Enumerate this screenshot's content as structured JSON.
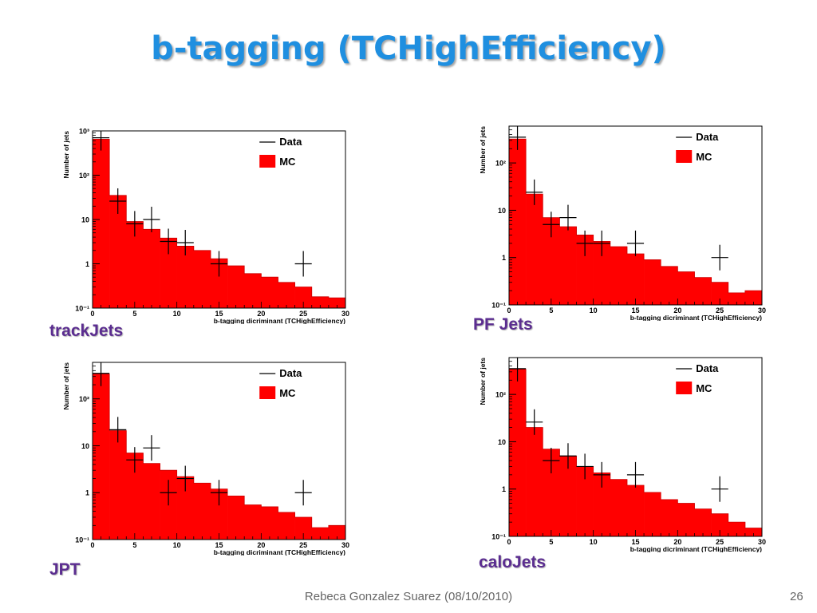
{
  "slide": {
    "title": "b-tagging (TCHighEfficiency)",
    "footer": "Rebeca Gonzalez Suarez  (08/10/2010)",
    "page_number": "26"
  },
  "colors": {
    "mc_fill": "#ff0000",
    "data_marker": "#000000",
    "title": "#1f8fe0",
    "panel_label": "#5b2d90"
  },
  "chart_data": [
    {
      "label": "trackJets",
      "type": "bar",
      "ylabel": "Number of jets",
      "xlabel": "b-tagging dicriminant (TCHighEfficiency)",
      "xlim": [
        0,
        30
      ],
      "ylim": [
        0.1,
        1000
      ],
      "log_y": true,
      "y_tick_labels": [
        "10⁻¹",
        "1",
        "10",
        "10²",
        "10³"
      ],
      "x_ticks": [
        0,
        5,
        10,
        15,
        20,
        25,
        30
      ],
      "legend": [
        "Data",
        "MC"
      ],
      "bin_width": 2,
      "mc": [
        650,
        35,
        9,
        6,
        3.8,
        2.5,
        2,
        1.3,
        0.9,
        0.6,
        0.5,
        0.38,
        0.3,
        0.18,
        0.17
      ],
      "data": {
        "x": [
          1,
          3,
          5,
          7,
          9,
          11,
          15,
          25
        ],
        "y": [
          700,
          26,
          8,
          10,
          3.2,
          3.0,
          1.0,
          1.0
        ]
      }
    },
    {
      "label": "PF Jets",
      "type": "bar",
      "ylabel": "Number of jets",
      "xlabel": "b-tagging dicriminant (TCHighEfficiency)",
      "xlim": [
        0,
        30
      ],
      "ylim": [
        0.1,
        600
      ],
      "log_y": true,
      "y_tick_labels": [
        "10⁻¹",
        "1",
        "10",
        "10²"
      ],
      "x_ticks": [
        0,
        5,
        10,
        15,
        20,
        25,
        30
      ],
      "legend": [
        "Data",
        "MC"
      ],
      "bin_width": 2,
      "mc": [
        320,
        22,
        7,
        4.5,
        3,
        2.2,
        1.7,
        1.2,
        0.9,
        0.65,
        0.5,
        0.38,
        0.3,
        0.18,
        0.2
      ],
      "data": {
        "x": [
          1,
          3,
          5,
          7,
          9,
          11,
          15,
          25
        ],
        "y": [
          350,
          24,
          5,
          7,
          2,
          2,
          2,
          1
        ]
      }
    },
    {
      "label": "JPT",
      "type": "bar",
      "ylabel": "Number of jets",
      "xlabel": "b-tagging dicriminant (TCHighEfficiency)",
      "xlim": [
        0,
        30
      ],
      "ylim": [
        0.1,
        600
      ],
      "log_y": true,
      "y_tick_labels": [
        "10⁻¹",
        "1",
        "10",
        "10²"
      ],
      "x_ticks": [
        0,
        5,
        10,
        15,
        20,
        25,
        30
      ],
      "legend": [
        "Data",
        "MC"
      ],
      "bin_width": 2,
      "mc": [
        340,
        21,
        7,
        4.2,
        3,
        2.2,
        1.6,
        1.2,
        0.85,
        0.55,
        0.5,
        0.38,
        0.3,
        0.18,
        0.2
      ],
      "data": {
        "x": [
          1,
          3,
          5,
          7,
          9,
          11,
          15,
          25
        ],
        "y": [
          350,
          22,
          5,
          9,
          1,
          2,
          1,
          1
        ]
      }
    },
    {
      "label": "caloJets",
      "type": "bar",
      "ylabel": "Number of jets",
      "xlabel": "b-tagging dicriminant (TCHighEfficiency)",
      "xlim": [
        0,
        30
      ],
      "ylim": [
        0.1,
        600
      ],
      "log_y": true,
      "y_tick_labels": [
        "10⁻¹",
        "1",
        "10",
        "10²"
      ],
      "x_ticks": [
        0,
        5,
        10,
        15,
        20,
        25,
        30
      ],
      "legend": [
        "Data",
        "MC"
      ],
      "bin_width": 2,
      "mc": [
        340,
        20,
        7,
        5,
        3,
        2.2,
        1.6,
        1.2,
        0.85,
        0.6,
        0.5,
        0.38,
        0.3,
        0.2,
        0.15
      ],
      "data": {
        "x": [
          1,
          3,
          5,
          7,
          9,
          11,
          15,
          25
        ],
        "y": [
          350,
          26,
          4,
          5,
          3,
          2,
          2,
          1
        ]
      }
    }
  ]
}
